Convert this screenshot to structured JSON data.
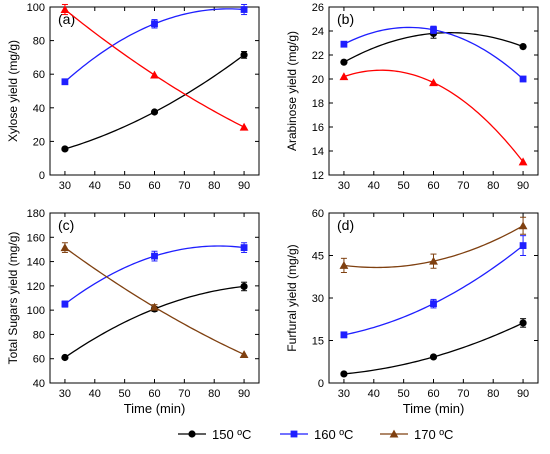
{
  "legend": {
    "items": [
      {
        "label": "150 ºC",
        "color": "#000000",
        "marker": "circle"
      },
      {
        "label": "160 ºC",
        "color": "#1f1fff",
        "marker": "square"
      },
      {
        "label": "170 ºC",
        "color": "#7f4010",
        "marker": "triangle"
      }
    ]
  },
  "chart_data": [
    {
      "type": "line",
      "panel_label": "(a)",
      "xlabel": "",
      "ylabel": "Xylose yield (mg/g)",
      "x": [
        30,
        60,
        90
      ],
      "xlim": [
        25,
        95
      ],
      "ylim": [
        0,
        100
      ],
      "xticks": [
        30,
        40,
        50,
        60,
        70,
        80,
        90
      ],
      "yticks": [
        0,
        20,
        40,
        60,
        80,
        100
      ],
      "series": [
        {
          "name": "150 ºC",
          "color": "#000000",
          "marker": "circle",
          "values": [
            15.5,
            37.5,
            71.5
          ],
          "errors": [
            0,
            0,
            2
          ],
          "fit": "curve"
        },
        {
          "name": "160 ºC",
          "color": "#1f1fff",
          "marker": "square",
          "values": [
            55.5,
            90,
            98.5
          ],
          "errors": [
            0,
            2.5,
            3
          ],
          "fit": "curve"
        },
        {
          "name": "170 ºC",
          "color": "#ff0000",
          "marker": "triangle",
          "values": [
            98.5,
            59.5,
            28.5
          ],
          "errors": [
            3,
            0,
            0
          ],
          "fit": "curve"
        }
      ]
    },
    {
      "type": "line",
      "panel_label": "(b)",
      "xlabel": "",
      "ylabel": "Arabinose yield (mg/g)",
      "x": [
        30,
        60,
        90
      ],
      "xlim": [
        25,
        95
      ],
      "ylim": [
        12,
        26
      ],
      "xticks": [
        30,
        40,
        50,
        60,
        70,
        80,
        90
      ],
      "yticks": [
        12,
        14,
        16,
        18,
        20,
        22,
        24,
        26
      ],
      "series": [
        {
          "name": "150 ºC",
          "color": "#000000",
          "marker": "circle",
          "values": [
            21.4,
            23.8,
            22.7
          ],
          "errors": [
            0,
            0.4,
            0
          ],
          "fit": "curve"
        },
        {
          "name": "160 ºC",
          "color": "#1f1fff",
          "marker": "square",
          "values": [
            22.9,
            24.1,
            20.0
          ],
          "errors": [
            0,
            0.3,
            0
          ],
          "fit": "curve"
        },
        {
          "name": "170 ºC",
          "color": "#ff0000",
          "marker": "triangle",
          "values": [
            20.2,
            19.7,
            13.1
          ],
          "errors": [
            0,
            0,
            0
          ],
          "fit": "curve"
        }
      ]
    },
    {
      "type": "line",
      "panel_label": "(c)",
      "xlabel": "Time (min)",
      "ylabel": "Total Sugars yield (mg/g)",
      "x": [
        30,
        60,
        90
      ],
      "xlim": [
        25,
        95
      ],
      "ylim": [
        40,
        180
      ],
      "xticks": [
        30,
        40,
        50,
        60,
        70,
        80,
        90
      ],
      "yticks": [
        40,
        60,
        80,
        100,
        120,
        140,
        160,
        180
      ],
      "series": [
        {
          "name": "150 ºC",
          "color": "#000000",
          "marker": "circle",
          "values": [
            61,
            101,
            119.5
          ],
          "errors": [
            0,
            2,
            3.5
          ],
          "fit": "curve"
        },
        {
          "name": "160 ºC",
          "color": "#1f1fff",
          "marker": "square",
          "values": [
            105,
            144.5,
            151.5
          ],
          "errors": [
            2.5,
            4,
            4
          ],
          "fit": "curve"
        },
        {
          "name": "170 ºC",
          "color": "#7f4010",
          "marker": "triangle",
          "values": [
            151.5,
            102.5,
            63.5
          ],
          "errors": [
            4,
            2,
            0
          ],
          "fit": "curve"
        }
      ]
    },
    {
      "type": "line",
      "panel_label": "(d)",
      "xlabel": "Time (min)",
      "ylabel": "Furfural yield (mg/g)",
      "x": [
        30,
        60,
        90
      ],
      "xlim": [
        25,
        95
      ],
      "ylim": [
        0,
        60
      ],
      "xticks": [
        30,
        40,
        50,
        60,
        70,
        80,
        90
      ],
      "yticks": [
        0,
        15,
        30,
        45,
        60
      ],
      "series": [
        {
          "name": "150 ºC",
          "color": "#000000",
          "marker": "circle",
          "values": [
            3.2,
            9.2,
            21.2
          ],
          "errors": [
            0,
            0,
            1.5
          ],
          "fit": "curve"
        },
        {
          "name": "160 ºC",
          "color": "#1f1fff",
          "marker": "square",
          "values": [
            17,
            28,
            48.5
          ],
          "errors": [
            1,
            1.5,
            3.5
          ],
          "fit": "curve"
        },
        {
          "name": "170 ºC",
          "color": "#7f4010",
          "marker": "triangle",
          "values": [
            41.5,
            43,
            55.5
          ],
          "errors": [
            2.5,
            2.5,
            3
          ],
          "fit": "curve"
        }
      ]
    }
  ]
}
